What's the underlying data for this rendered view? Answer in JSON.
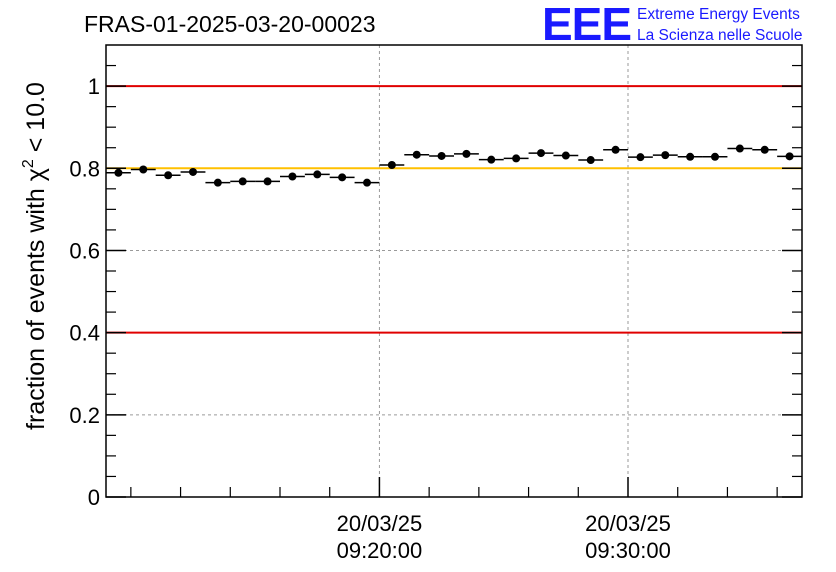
{
  "title": "FRAS-01-2025-03-20-00023",
  "logo": {
    "mark": "EEE",
    "line1": "Extreme Energy Events",
    "line2": "La Scienza nelle Scuole",
    "color": "#1a1aff"
  },
  "chart_data": {
    "type": "scatter",
    "ylabel_prefix": "fraction of events with ",
    "ylabel_symbol": "χ",
    "ylabel_sup": "2",
    "ylabel_suffix": " < 10.0",
    "xlabel": "",
    "ylim": [
      0,
      1.1
    ],
    "yticks": [
      0,
      0.2,
      0.4,
      0.6,
      0.8,
      1
    ],
    "ytick_labels": [
      "0",
      "0.2",
      "0.4",
      "0.6",
      "0.8",
      "1"
    ],
    "xlim_minutes": [
      9.0,
      37.0
    ],
    "xticks": [
      {
        "minute": 20,
        "date": "20/03/25",
        "time": "09:20:00"
      },
      {
        "minute": 30,
        "date": "20/03/25",
        "time": "09:30:00"
      }
    ],
    "grid": true,
    "reference_lines": [
      {
        "y": 1.0,
        "color": "#e00000"
      },
      {
        "y": 0.8,
        "color": "#ffc000"
      },
      {
        "y": 0.4,
        "color": "#e00000"
      }
    ],
    "bin_width_minutes": 1.0,
    "x_minutes": [
      9.5,
      10.5,
      11.5,
      12.5,
      13.5,
      14.5,
      15.5,
      16.5,
      17.5,
      18.5,
      19.5,
      20.5,
      21.5,
      22.5,
      23.5,
      24.5,
      25.5,
      26.5,
      27.5,
      28.5,
      29.5,
      30.5,
      31.5,
      32.5,
      33.5,
      34.5,
      35.5,
      36.5
    ],
    "y": [
      0.789,
      0.797,
      0.783,
      0.791,
      0.765,
      0.768,
      0.768,
      0.78,
      0.785,
      0.778,
      0.765,
      0.808,
      0.833,
      0.83,
      0.835,
      0.821,
      0.824,
      0.837,
      0.831,
      0.82,
      0.845,
      0.827,
      0.832,
      0.828,
      0.828,
      0.848,
      0.845,
      0.829
    ],
    "y_err": [
      0.006,
      0.006,
      0.006,
      0.006,
      0.006,
      0.006,
      0.006,
      0.006,
      0.006,
      0.006,
      0.006,
      0.006,
      0.006,
      0.006,
      0.006,
      0.006,
      0.006,
      0.006,
      0.006,
      0.006,
      0.006,
      0.006,
      0.006,
      0.006,
      0.006,
      0.006,
      0.006,
      0.006
    ],
    "marker_color": "#000000"
  }
}
